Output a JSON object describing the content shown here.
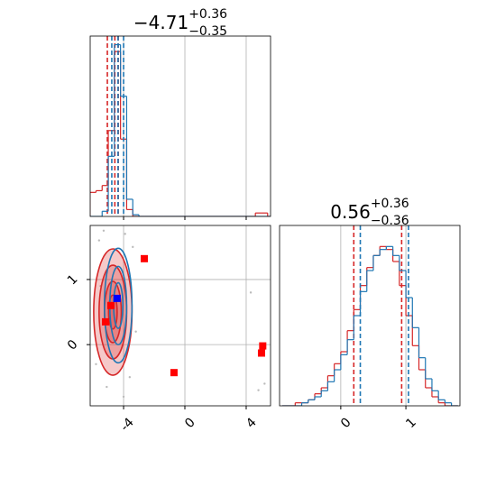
{
  "chart_data": [
    {
      "type": "histogram",
      "title": "−4.71",
      "title_upper": "+0.36",
      "title_lower": "−0.35",
      "bins": [
        -6.2,
        -5.8,
        -5.4,
        -5.0,
        -4.6,
        -4.2,
        -3.8,
        -3.4,
        -3.0,
        -2.6,
        -2.2,
        -1.8,
        -1.4,
        -1.0,
        -0.6,
        -0.2,
        0.2,
        0.6,
        1.0,
        1.4,
        1.8,
        2.2,
        2.6,
        3.0,
        3.4,
        3.8,
        4.2,
        4.6,
        5.0,
        5.4,
        5.8
      ],
      "series": [
        {
          "color": "#d62728",
          "values": [
            14,
            15,
            18,
            50,
            96,
            45,
            4,
            0,
            0,
            0,
            0,
            0,
            0,
            0,
            0,
            0,
            0,
            0,
            0,
            0,
            0,
            0,
            0,
            0,
            0,
            0,
            0,
            2,
            2,
            0
          ],
          "quantiles": [
            -5.06,
            -4.57,
            -4.35
          ]
        },
        {
          "color": "#1f77b4",
          "values": [
            0,
            0,
            3,
            35,
            100,
            70,
            10,
            1,
            0,
            0,
            0,
            0,
            0,
            0,
            0,
            0,
            0,
            0,
            0,
            0,
            0,
            0,
            0,
            0,
            0,
            0,
            0,
            0,
            0,
            0
          ],
          "quantiles": [
            -4.77,
            -4.36,
            -4.0
          ]
        }
      ],
      "xlim": [
        -6.18,
        5.59
      ],
      "ylim": [
        0,
        105
      ],
      "xticks": [
        -4,
        0,
        4
      ],
      "grid": true
    },
    {
      "type": "contour",
      "contours": [
        {
          "color": "#d62728",
          "levels": [
            {
              "cx": -4.7,
              "cy": 0.5,
              "rx": 1.25,
              "ry": 0.97
            },
            {
              "cx": -4.7,
              "cy": 0.5,
              "rx": 0.9,
              "ry": 0.72
            },
            {
              "cx": -4.7,
              "cy": 0.5,
              "rx": 0.55,
              "ry": 0.47
            },
            {
              "cx": -4.7,
              "cy": 0.5,
              "rx": 0.28,
              "ry": 0.26
            }
          ]
        },
        {
          "color": "#1f77b4",
          "levels": [
            {
              "cx": -4.35,
              "cy": 0.6,
              "rx": 0.9,
              "ry": 0.88
            },
            {
              "cx": -4.35,
              "cy": 0.6,
              "rx": 0.55,
              "ry": 0.6
            },
            {
              "cx": -4.35,
              "cy": 0.6,
              "rx": 0.3,
              "ry": 0.35
            }
          ]
        }
      ],
      "points": {
        "color": "#bbbbbb",
        "x": [
          -5.6,
          -5.3,
          -3.4,
          -3.6,
          -5.8,
          -3.2,
          4.3,
          4.8,
          5.2,
          -5.1,
          -3.9,
          -4.0,
          -5.5
        ],
        "y": [
          1.6,
          1.75,
          1.5,
          -0.5,
          -0.3,
          0.2,
          0.8,
          -0.7,
          -0.6,
          -0.65,
          1.7,
          -0.8,
          0.9
        ]
      },
      "markers": [
        {
          "color": "#ff0000",
          "x": [
            -2.65,
            -0.71,
            5.08,
            5.0,
            -5.18,
            -4.83
          ],
          "y": [
            1.32,
            -0.43,
            -0.02,
            -0.13,
            0.35,
            0.6
          ]
        },
        {
          "color": "#0000ff",
          "x": [
            -4.42
          ],
          "y": [
            0.71
          ]
        }
      ],
      "xlim": [
        -6.18,
        5.59
      ],
      "ylim": [
        -0.94,
        1.83
      ],
      "xticks": [
        -4,
        0,
        4
      ],
      "yticks": [
        0,
        1
      ],
      "grid": true
    },
    {
      "type": "histogram",
      "title": "0.56",
      "title_upper": "+0.36",
      "title_lower": "−0.36",
      "bins": [
        -0.9,
        -0.8,
        -0.7,
        -0.6,
        -0.5,
        -0.4,
        -0.3,
        -0.2,
        -0.1,
        0.0,
        0.1,
        0.2,
        0.3,
        0.4,
        0.5,
        0.6,
        0.7,
        0.8,
        0.9,
        1.0,
        1.1,
        1.2,
        1.3,
        1.4,
        1.5,
        1.6,
        1.7,
        1.8
      ],
      "series": [
        {
          "color": "#d62728",
          "values": [
            0,
            0,
            1,
            1,
            2,
            4,
            6,
            10,
            14,
            18,
            25,
            32,
            40,
            46,
            50,
            53,
            52,
            48,
            40,
            30,
            20,
            12,
            6,
            3,
            1,
            0,
            0
          ],
          "quantiles": [
            0.2,
            0.935
          ]
        },
        {
          "color": "#1f77b4",
          "values": [
            0,
            0,
            0,
            1,
            2,
            3,
            5,
            8,
            12,
            17,
            22,
            30,
            38,
            45,
            50,
            52,
            53,
            50,
            45,
            36,
            26,
            16,
            9,
            5,
            2,
            1,
            0
          ],
          "quantiles": [
            0.3,
            1.04
          ]
        }
      ],
      "xlim": [
        -0.94,
        1.83
      ],
      "ylim": [
        0,
        60
      ],
      "xticks": [
        0,
        1
      ],
      "grid": true
    }
  ]
}
